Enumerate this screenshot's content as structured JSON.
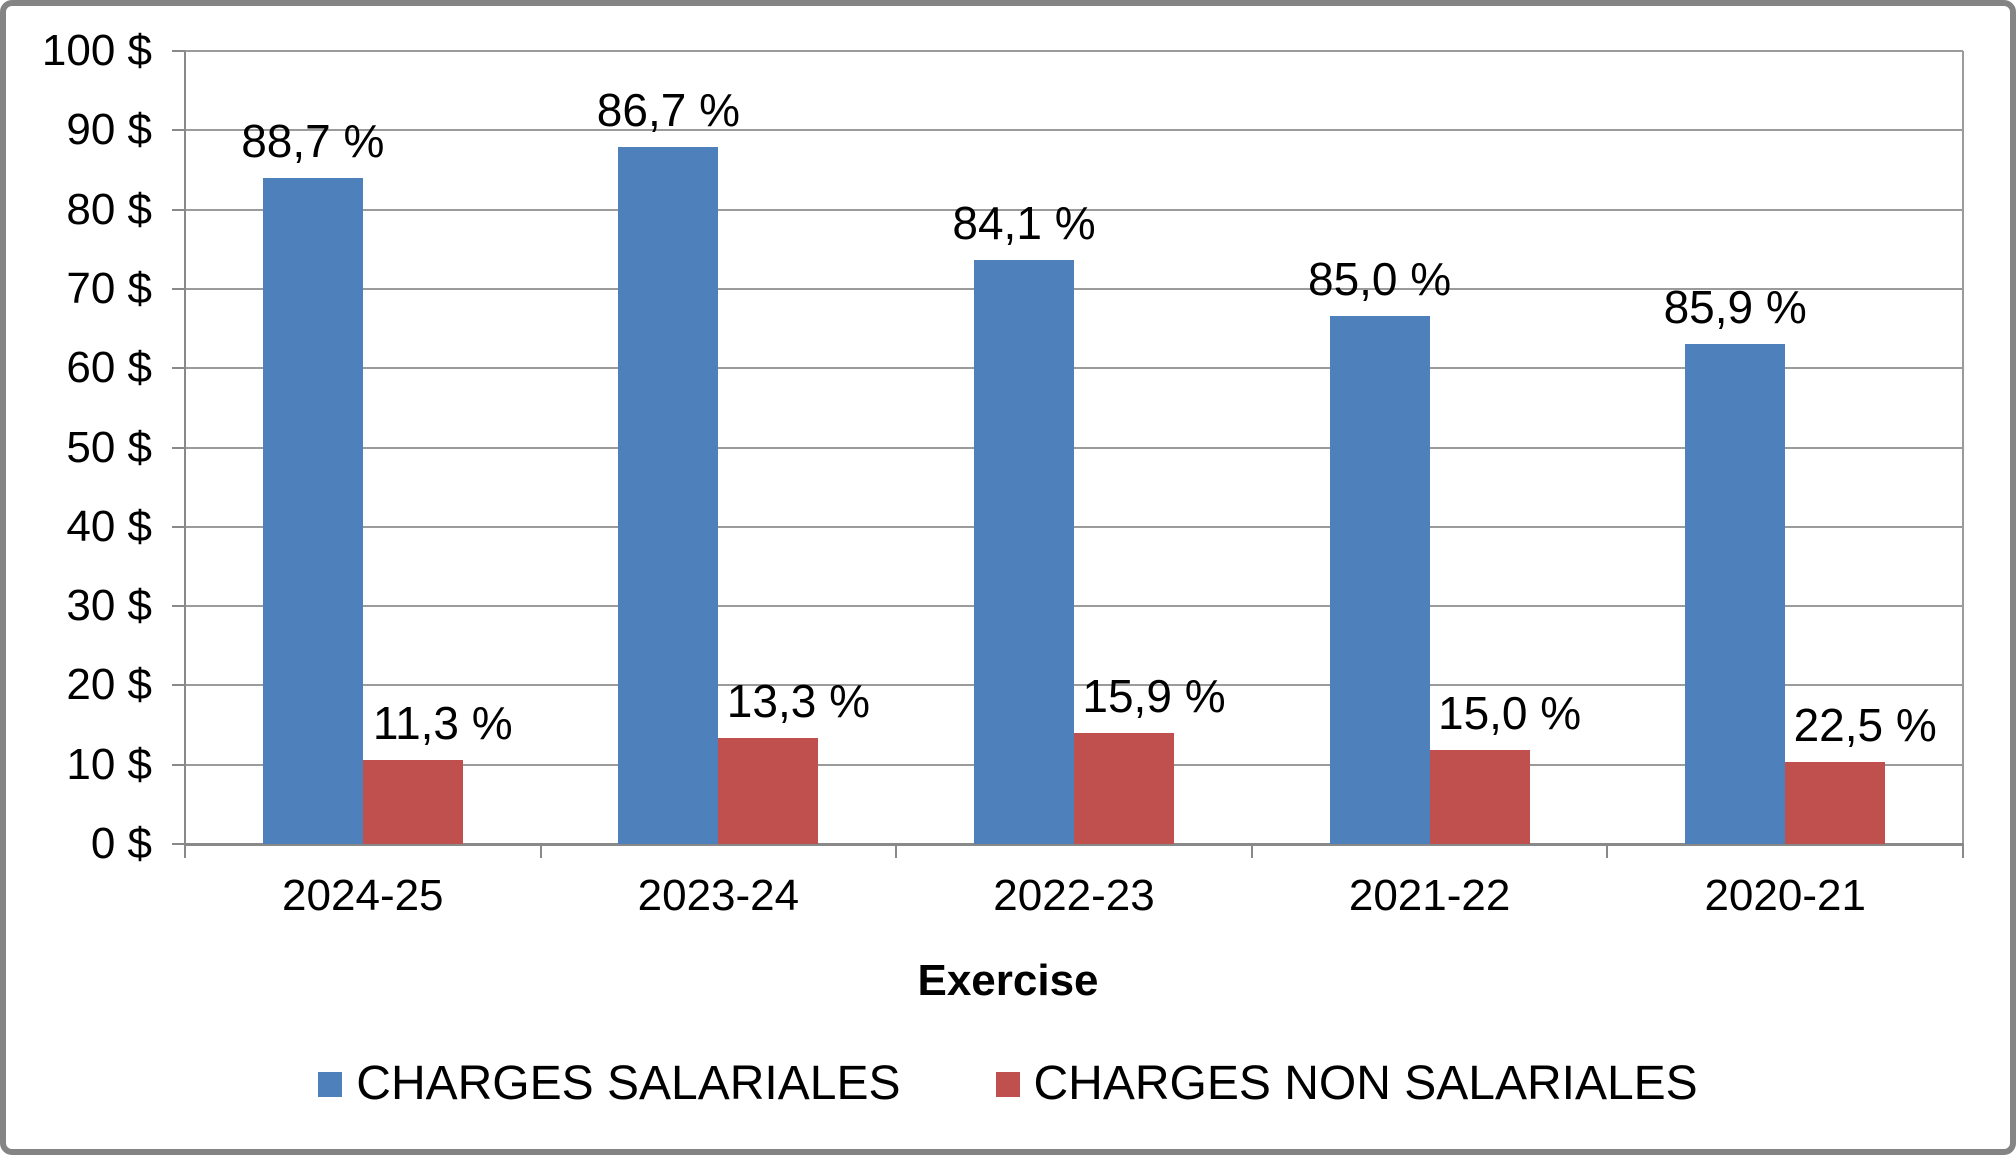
{
  "chart_data": {
    "type": "bar",
    "title": "",
    "xlabel": "Exercise",
    "ylabel": "",
    "categories": [
      "2024-25",
      "2023-24",
      "2022-23",
      "2021-22",
      "2020-21"
    ],
    "y_tick_labels": [
      "0 $",
      "10 $",
      "20 $",
      "30 $",
      "40 $",
      "50 $",
      "60 $",
      "70 $",
      "80 $",
      "90 $",
      "100 $"
    ],
    "ylim": [
      0,
      100
    ],
    "grid": true,
    "legend_position": "bottom",
    "series": [
      {
        "name": "CHARGES SALARIALES",
        "color": "#4E81BC",
        "bar_heights_dollars": [
          84.0,
          87.9,
          73.6,
          66.6,
          63.1
        ],
        "point_labels": [
          "88,7 %",
          "86,7 %",
          "84,1 %",
          "85,0 %",
          "85,9 %"
        ]
      },
      {
        "name": "CHARGES NON SALARIALES",
        "color": "#C0504D",
        "bar_heights_dollars": [
          10.6,
          13.4,
          14.0,
          11.8,
          10.4
        ],
        "point_labels": [
          "11,3 %",
          "13,3 %",
          "15,9 %",
          "15,0 %",
          "22,5 %"
        ]
      }
    ]
  },
  "colors": {
    "gridline": "#9B9B9B",
    "axis": "#898989",
    "border": "#848484",
    "text": "#000000",
    "background": "#FFFFFF"
  }
}
